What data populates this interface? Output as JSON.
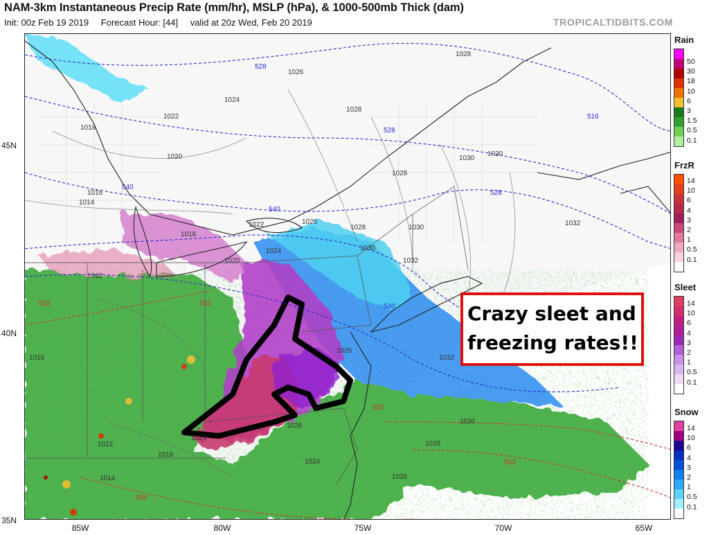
{
  "header": {
    "title": "NAM-3km Instantaneous Precip Rate (mm/hr), MSLP (hPa), & 1000-500mb Thick (dam)",
    "init": "Init: 00z Feb 19 2019",
    "forecast_hour": "Forecast Hour: [44]",
    "valid": "valid at 20z Wed, Feb 20 2019",
    "brand": "TROPICALTIDBITS.COM"
  },
  "axes": {
    "lat_labels": [
      "45N",
      "40N",
      "35N"
    ],
    "lon_labels": [
      "85W",
      "80W",
      "75W",
      "70W",
      "65W"
    ]
  },
  "legends": {
    "rain": {
      "title": "Rain",
      "labels": [
        "50",
        "30",
        "18",
        "10",
        "6",
        "3",
        "1.5",
        "0.5",
        "0.1"
      ],
      "colors": [
        "#ff00ff",
        "#c0007a",
        "#b40000",
        "#e03000",
        "#f07000",
        "#f0c030",
        "#1a7a20",
        "#2fa030",
        "#6fcf50",
        "#b0f0a0"
      ]
    },
    "frzr": {
      "title": "FrzR",
      "labels": [
        "14",
        "10",
        "6",
        "4",
        "3",
        "2",
        "1",
        "0.5",
        "0.1"
      ],
      "colors": [
        "#ff4f00",
        "#e04020",
        "#c83238",
        "#b42848",
        "#a01e58",
        "#c84a7a",
        "#e07aa0",
        "#f0a8c0",
        "#fad0e0",
        "#ffffff"
      ]
    },
    "sleet": {
      "title": "Sleet",
      "labels": [
        "14",
        "10",
        "6",
        "4",
        "3",
        "2",
        "1",
        "0.5",
        "0.1"
      ],
      "colors": [
        "#e04060",
        "#d0306e",
        "#c01e80",
        "#b01e98",
        "#9a2ab4",
        "#b060d8",
        "#c890e8",
        "#dab6f0",
        "#ecdaf8",
        "#ffffff"
      ]
    },
    "snow": {
      "title": "Snow",
      "labels": [
        "14",
        "10",
        "6",
        "4",
        "3",
        "2",
        "1",
        "0.5",
        "0.1"
      ],
      "colors": [
        "#e040a0",
        "#a00080",
        "#200090",
        "#0030c0",
        "#0050e0",
        "#1080f0",
        "#30a8f8",
        "#60d0f8",
        "#a0f0ff",
        "#ffffff"
      ]
    }
  },
  "pressure_labels": [
    "1028",
    "1026",
    "1024",
    "1022",
    "1020",
    "1018",
    "1016",
    "1014",
    "1012",
    "1030",
    "1032",
    "1018",
    "1024",
    "1022",
    "1020",
    "1016",
    "1026",
    "1028",
    "1030",
    "1032",
    "1028",
    "1028",
    "1030",
    "1030",
    "1026",
    "1024",
    "1026",
    "1012",
    "1014",
    "1018",
    "1024",
    "1026",
    "1030",
    "1028",
    "1032"
  ],
  "thickness_labels": [
    "528",
    "528",
    "516",
    "540",
    "540",
    "528",
    "540",
    "552",
    "552",
    "552",
    "552",
    "564"
  ],
  "callout": {
    "line1": "Crazy sleet and",
    "line2": "freezing rates!!"
  }
}
